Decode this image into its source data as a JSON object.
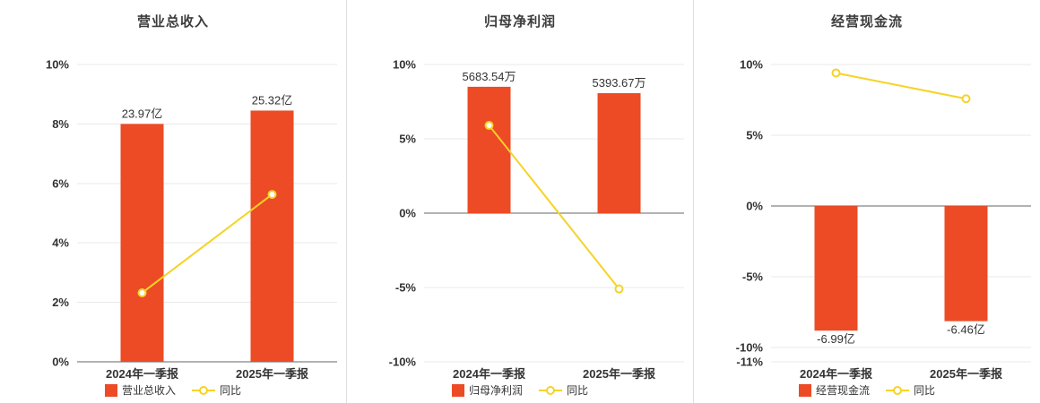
{
  "page": {
    "background": "#ffffff"
  },
  "chart_data": [
    {
      "type": "bar+line",
      "title": "营业总收入",
      "categories": [
        "2024年一季报",
        "2025年一季报"
      ],
      "bar_series": {
        "name": "营业总收入",
        "color": "#ec4b26",
        "value_labels": [
          "23.97亿",
          "25.32亿"
        ],
        "heights_pct": [
          8.0,
          8.45
        ],
        "value_label_position": "above"
      },
      "line_series": {
        "name": "同比",
        "color": "#f5d327",
        "values_pct": [
          2.32,
          5.63
        ]
      },
      "ylim": [
        0,
        10
      ],
      "yticks": [
        10,
        8,
        6,
        4,
        2,
        0
      ],
      "ytick_labels": [
        "10%",
        "8%",
        "6%",
        "4%",
        "2%",
        "0%"
      ],
      "grid": true,
      "legend_position": "bottom"
    },
    {
      "type": "bar+line",
      "title": "归母净利润",
      "categories": [
        "2024年一季报",
        "2025年一季报"
      ],
      "bar_series": {
        "name": "归母净利润",
        "color": "#ec4b26",
        "value_labels": [
          "5683.54万",
          "5393.67万"
        ],
        "heights_pct": [
          8.5,
          8.07
        ],
        "value_label_position": "above"
      },
      "line_series": {
        "name": "同比",
        "color": "#f5d327",
        "values_pct": [
          5.9,
          -5.1
        ]
      },
      "ylim": [
        -10,
        10
      ],
      "yticks": [
        10,
        5,
        0,
        -5,
        -10
      ],
      "ytick_labels": [
        "10%",
        "5%",
        "0%",
        "-5%",
        "-10%"
      ],
      "grid": true,
      "legend_position": "bottom"
    },
    {
      "type": "bar+line",
      "title": "经营现金流",
      "categories": [
        "2024年一季报",
        "2025年一季报"
      ],
      "bar_series": {
        "name": "经营现金流",
        "color": "#ec4b26",
        "value_labels": [
          "-6.99亿",
          "-6.46亿"
        ],
        "heights_pct": [
          -8.8,
          -8.13
        ],
        "value_label_position": "below"
      },
      "line_series": {
        "name": "同比",
        "color": "#f5d327",
        "values_pct": [
          9.4,
          7.58
        ]
      },
      "ylim": [
        -11,
        10
      ],
      "yticks": [
        10,
        5,
        0,
        -5,
        -10,
        -11
      ],
      "ytick_labels": [
        "10%",
        "5%",
        "0%",
        "-5%",
        "-10%",
        "-11%"
      ],
      "grid": true,
      "legend_position": "bottom"
    }
  ]
}
